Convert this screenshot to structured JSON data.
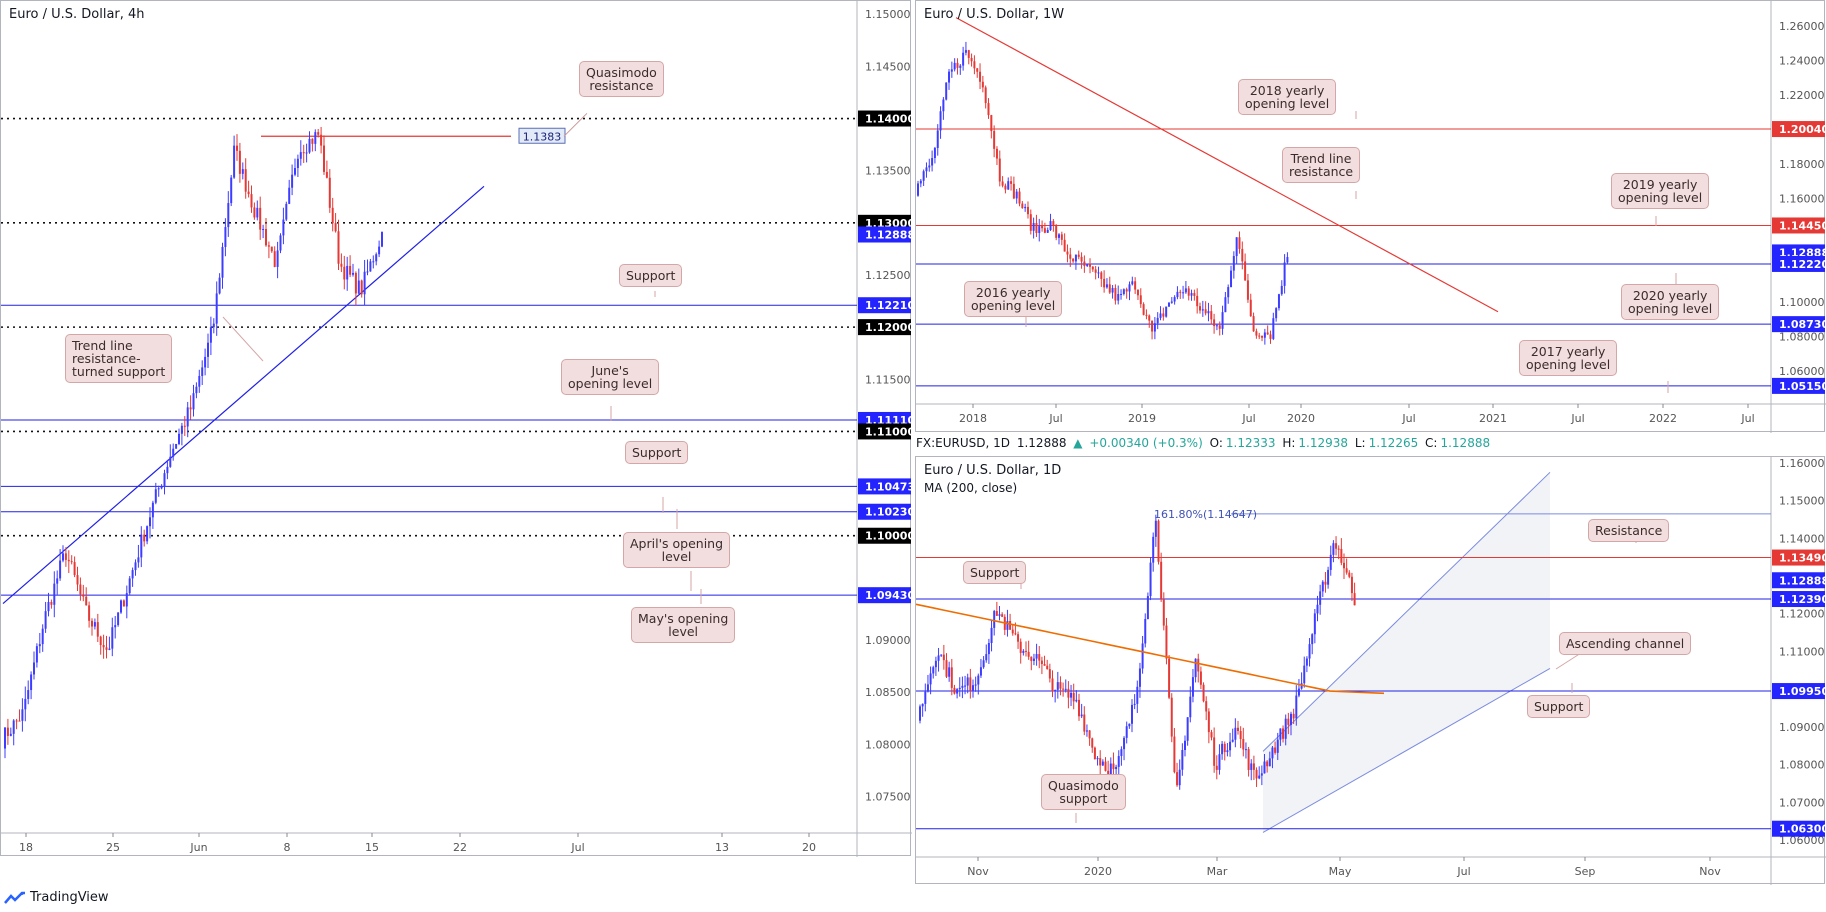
{
  "colors": {
    "bull": "#3d3dff",
    "bear": "#e53935",
    "res": "#e53935",
    "sup": "#2020e6",
    "ma": "#ef6c00",
    "callout_bg": "#f2dede"
  },
  "footer": {
    "logo_icon": "tradingview-logo-icon",
    "label": "TradingView"
  },
  "panels": {
    "h4": {
      "title": "Euro / U.S. Dollar, 4h",
      "y_range": [
        1.0715,
        1.1505
      ],
      "y_ticks": [
        "1.15000",
        "1.14500",
        "1.13500",
        "1.12500",
        "1.11500",
        "1.09000",
        "1.08500",
        "1.08000",
        "1.07500"
      ],
      "x_ticks": [
        "18",
        "25",
        "Jun",
        "8",
        "15",
        "22",
        "Jul",
        "13",
        "20"
      ],
      "levels": [
        {
          "value": "1.14000",
          "price": 1.14,
          "kind": "dotted"
        },
        {
          "value": "1.13000",
          "price": 1.13,
          "kind": "dotted"
        },
        {
          "value": "1.12888",
          "price": 1.12888,
          "kind": "price"
        },
        {
          "value": "1.12210",
          "price": 1.1221,
          "kind": "sup"
        },
        {
          "value": "1.12000",
          "price": 1.12,
          "kind": "dotted"
        },
        {
          "value": "1.11110",
          "price": 1.1111,
          "kind": "sup"
        },
        {
          "value": "1.11000",
          "price": 1.11,
          "kind": "dotted"
        },
        {
          "value": "1.10473",
          "price": 1.10473,
          "kind": "sup"
        },
        {
          "value": "1.10230",
          "price": 1.1023,
          "kind": "sup"
        },
        {
          "value": "1.10000",
          "price": 1.1,
          "kind": "dotted"
        },
        {
          "value": "1.09430",
          "price": 1.0943,
          "kind": "sup"
        }
      ],
      "quasimodo_price": "1.1383",
      "callouts": {
        "quasimodo": [
          "Quasimodo",
          "resistance"
        ],
        "support_a": [
          "Support"
        ],
        "trendline": [
          "Trend line",
          "resistance-",
          "turned support"
        ],
        "june_open": [
          "June's",
          "opening level"
        ],
        "support_b": [
          "Support"
        ],
        "april_open": [
          "April's opening",
          "level"
        ],
        "may_open": [
          "May's opening",
          "level"
        ]
      }
    },
    "w1": {
      "title": "Euro / U.S. Dollar, 1W",
      "y_range": [
        1.041,
        1.27
      ],
      "y_ticks": [
        "1.26000",
        "1.24000",
        "1.22000",
        "1.18000",
        "1.16000",
        "1.10000",
        "1.08000",
        "1.06000"
      ],
      "x_ticks": [
        "2018",
        "Jul",
        "2019",
        "Jul",
        "2020",
        "Jul",
        "2021",
        "Jul",
        "2022",
        "Jul"
      ],
      "levels": [
        {
          "value": "1.20040",
          "price": 1.2004,
          "kind": "res"
        },
        {
          "value": "1.14450",
          "price": 1.1445,
          "kind": "res"
        },
        {
          "value": "1.12888",
          "price": 1.12888,
          "kind": "price"
        },
        {
          "value": "1.12220",
          "price": 1.1222,
          "kind": "sup"
        },
        {
          "value": "1.08730",
          "price": 1.0873,
          "kind": "sup"
        },
        {
          "value": "1.05150",
          "price": 1.0515,
          "kind": "sup"
        }
      ],
      "callouts": {
        "y2018": [
          "2018 yearly",
          "opening level"
        ],
        "trend_res": [
          "Trend line",
          "resistance"
        ],
        "y2019": [
          "2019 yearly",
          "opening level"
        ],
        "y2016": [
          "2016 yearly",
          "opening level"
        ],
        "y2020": [
          "2020 yearly",
          "opening level"
        ],
        "y2017": [
          "2017 yearly",
          "opening level"
        ]
      }
    },
    "d1": {
      "title": "Euro / U.S. Dollar, 1D",
      "subtitle": "MA (200, close)",
      "info": {
        "symbol": "FX:EURUSD, 1D",
        "last": "1.12888",
        "change": "+0.00340 (+0.3%)",
        "o_label": "O:",
        "o": "1.12333",
        "h_label": "H:",
        "h": "1.12938",
        "l_label": "L:",
        "l": "1.12265",
        "c_label": "C:",
        "c": "1.12888"
      },
      "y_range": [
        1.0555,
        1.1605
      ],
      "y_ticks": [
        "1.16000",
        "1.15000",
        "1.14000",
        "1.12000",
        "1.11000",
        "1.09000",
        "1.08000",
        "1.07000",
        "1.06000"
      ],
      "x_ticks": [
        "Nov",
        "2020",
        "Mar",
        "May",
        "Jul",
        "Sep",
        "Nov"
      ],
      "fib_label": "161.80%(1.14647)",
      "levels": [
        {
          "value": "1.13490",
          "price": 1.1349,
          "kind": "res"
        },
        {
          "value": "1.12888",
          "price": 1.12888,
          "kind": "price"
        },
        {
          "value": "1.12390",
          "price": 1.1239,
          "kind": "sup"
        },
        {
          "value": "1.09950",
          "price": 1.0995,
          "kind": "sup"
        },
        {
          "value": "1.06300",
          "price": 1.063,
          "kind": "sup"
        }
      ],
      "callouts": {
        "resistance": [
          "Resistance"
        ],
        "support_a": [
          "Support"
        ],
        "asc_channel": [
          "Ascending channel"
        ],
        "support_b": [
          "Support"
        ],
        "quasimodo": [
          "Quasimodo",
          "support"
        ]
      }
    }
  }
}
